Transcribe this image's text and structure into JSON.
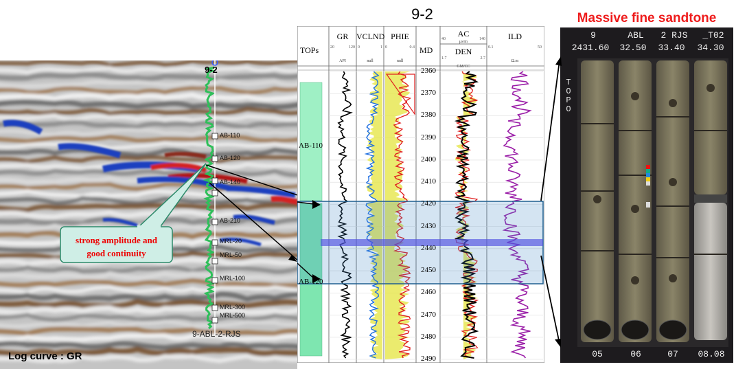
{
  "figure_title": "9-2",
  "seismic": {
    "well_name": "9-2",
    "well_label_bottom": "9-ABL-2-RJS",
    "log_curve_label": "Log curve : GR",
    "callout": {
      "line1": "strong amplitude and",
      "line2": "good continuity"
    },
    "horizon_markers": [
      "AB-110",
      "AB-120",
      "AB-140",
      "AB-210",
      "MRL-20",
      "MRL-50",
      "MRL-100",
      "MRL-300",
      "MRL-500"
    ],
    "colors": {
      "positive": "#d42020",
      "negative": "#1f3fbf",
      "trough_brown": "#7d5a3a",
      "well_log": "#22c55e"
    }
  },
  "log_panel": {
    "tops_header": "TOPs",
    "md_header": "MD",
    "tops": [
      "AB-110",
      "AB-120"
    ],
    "tracks": [
      {
        "name": "GR",
        "min": "20",
        "max": "120",
        "unit": "API"
      },
      {
        "name": "VCLND",
        "min": "0",
        "max": "1",
        "unit": "null"
      },
      {
        "name": "PHIE",
        "min": "0",
        "max": "0.4",
        "unit": "null"
      },
      {
        "name": "AC",
        "min": "40",
        "max": "140",
        "unit": "μs/m"
      },
      {
        "name": "DEN",
        "min": "1.7",
        "max": "2.7",
        "unit": "GM/CC"
      },
      {
        "name": "ILD",
        "min": "0.1",
        "max": "50",
        "unit": "Ω.m"
      }
    ],
    "depths": [
      "2360",
      "2370",
      "2380",
      "2390",
      "2400",
      "2410",
      "2420",
      "2430",
      "2440",
      "2450",
      "2460",
      "2470",
      "2480",
      "2490"
    ],
    "highlight_interval": {
      "top": "2420",
      "bottom": "2457",
      "color": "#3b82c4"
    },
    "thin_band_depth": "2440"
  },
  "core_photo": {
    "title": "Massive fine sandtone",
    "header_top": [
      "9",
      "ABL",
      "2 RJS",
      "_T02"
    ],
    "header_depths": [
      "2431.60",
      "32.50",
      "33.40",
      "34.30"
    ],
    "side_label": "TOPO",
    "box_numbers": [
      "05",
      "06",
      "07",
      "08.08"
    ]
  }
}
